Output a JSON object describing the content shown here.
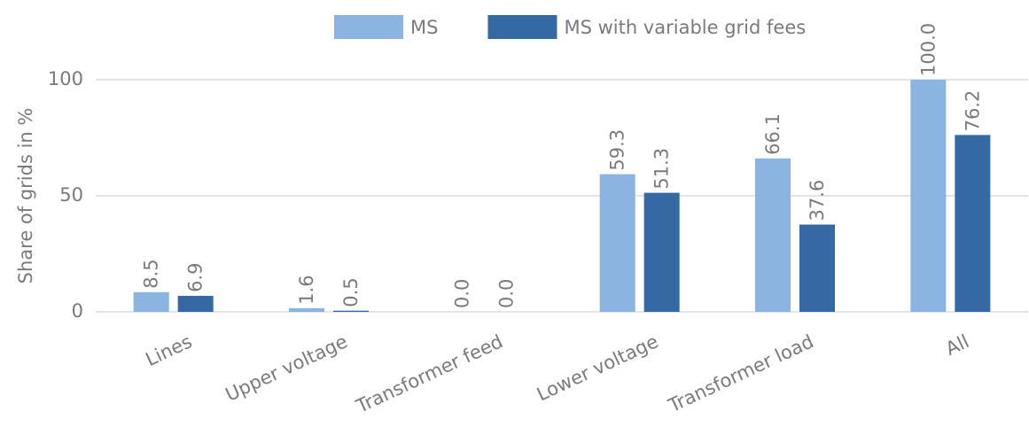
{
  "chart_data": {
    "type": "bar",
    "categories": [
      "Lines",
      "Upper voltage",
      "Transformer feed",
      "Lower voltage",
      "Transformer load",
      "All"
    ],
    "series": [
      {
        "name": "MS",
        "color": "#8bb4e0",
        "values": [
          8.5,
          1.6,
          0.0,
          59.3,
          66.1,
          100.0
        ],
        "value_labels": [
          "8.5",
          "1.6",
          "0.0",
          "59.3",
          "66.1",
          "100.0"
        ]
      },
      {
        "name": "MS with variable grid fees",
        "color": "#3569a3",
        "values": [
          6.9,
          0.5,
          0.0,
          51.3,
          37.6,
          76.2
        ],
        "value_labels": [
          "6.9",
          "0.5",
          "0.0",
          "51.3",
          "37.6",
          "76.2"
        ]
      }
    ],
    "y_label": "Share of grids in %",
    "ylim": [
      0,
      100
    ],
    "yticks": [
      0,
      50,
      100
    ],
    "grid": true,
    "legend": "top"
  }
}
